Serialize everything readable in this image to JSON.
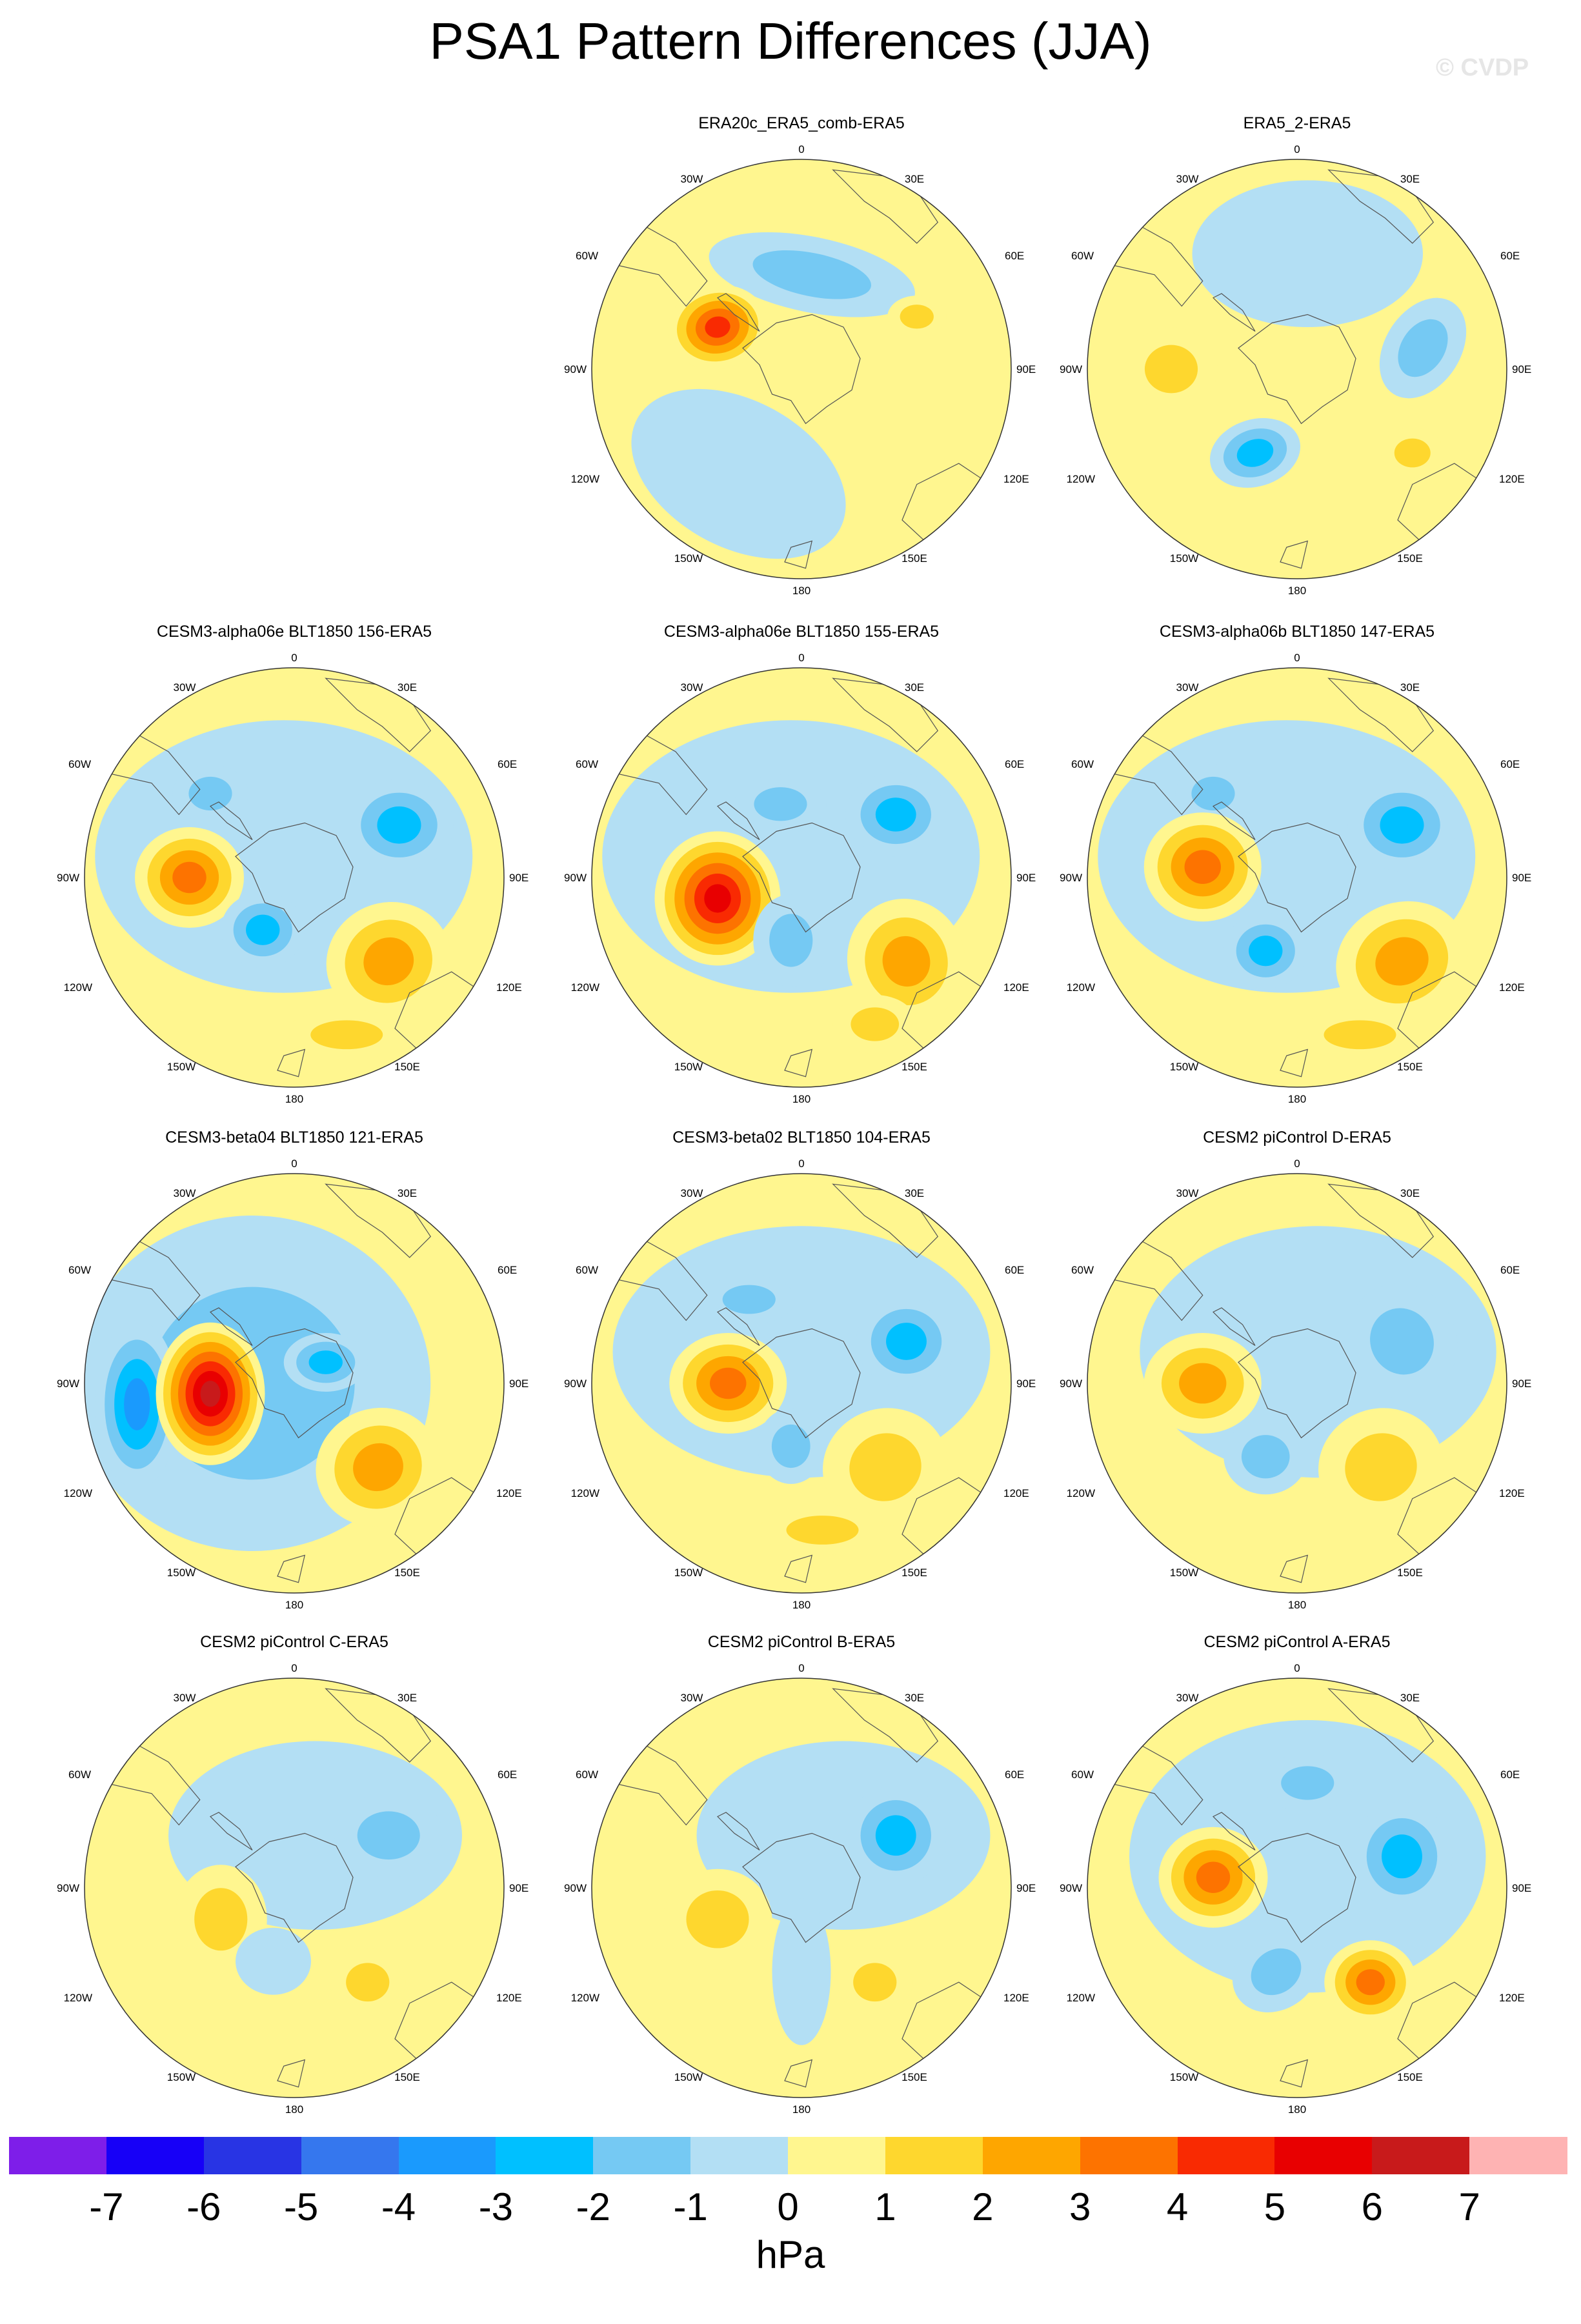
{
  "title": "PSA1 Pattern Differences (JJA)",
  "watermark": "© CVDP",
  "colors": {
    "ocean_default": "#fff68f",
    "levels": [
      "#7e1ee9",
      "#1700f7",
      "#2834e4",
      "#3577ee",
      "#1a9afd",
      "#00c0ff",
      "#75c9f3",
      "#b3dff4",
      "#fff68f",
      "#fed72e",
      "#fea600",
      "#fd7300",
      "#f92a02",
      "#e80001",
      "#c81a1b",
      "#feb3b3"
    ]
  },
  "icons": {
    "map": "polar-stereographic-map"
  },
  "map_labels": {
    "top": "0",
    "bottom": "180",
    "left": "90W",
    "right": "90E",
    "upper_left_1": "30W",
    "upper_left_2": "60W",
    "upper_right_1": "30E",
    "upper_right_2": "60E",
    "lower_left_1": "120W",
    "lower_left_2": "150W",
    "lower_right_1": "120E",
    "lower_right_2": "150E"
  },
  "panels": [
    {
      "title": "ERA20c_ERA5_comb-ERA5",
      "features": [
        [
          -0.3,
          -0.5,
          0.55,
          0.35,
          -0.5,
          -0.6
        ],
        [
          0.05,
          0.45,
          0.5,
          0.18,
          -0.2,
          -2
        ],
        [
          -0.4,
          0.2,
          0.24,
          0.2,
          0.2,
          5
        ],
        [
          0.55,
          0.25,
          0.14,
          0.1,
          0,
          2
        ]
      ]
    },
    {
      "title": "ERA5_2-ERA5",
      "features": [
        [
          0.05,
          0.55,
          0.55,
          0.35,
          0,
          -1
        ],
        [
          0.6,
          0.1,
          0.26,
          0.18,
          1,
          -2
        ],
        [
          -0.6,
          0.0,
          0.22,
          0.2,
          0,
          2
        ],
        [
          -0.2,
          -0.4,
          0.22,
          0.16,
          0.3,
          -3
        ],
        [
          0.55,
          -0.4,
          0.15,
          0.12,
          0,
          2
        ]
      ]
    },
    {
      "title": "CESM3-alpha06e BLT1850 156-ERA5",
      "features": [
        [
          -0.05,
          0.1,
          0.9,
          0.65,
          0,
          -1
        ],
        [
          -0.4,
          0.4,
          0.18,
          0.14,
          0,
          -2
        ],
        [
          0.5,
          0.25,
          0.26,
          0.22,
          0,
          -3
        ],
        [
          -0.5,
          0.0,
          0.26,
          0.24,
          0,
          4
        ],
        [
          -0.15,
          -0.25,
          0.2,
          0.18,
          0,
          -3
        ],
        [
          0.45,
          -0.4,
          0.3,
          0.28,
          0.4,
          3
        ],
        [
          0.25,
          -0.75,
          0.3,
          0.12,
          0,
          2
        ]
      ]
    },
    {
      "title": "CESM3-alpha06e BLT1850 155-ERA5",
      "features": [
        [
          -0.05,
          0.1,
          0.9,
          0.65,
          0,
          -1
        ],
        [
          -0.1,
          0.35,
          0.22,
          0.14,
          0,
          -2
        ],
        [
          0.45,
          0.3,
          0.24,
          0.2,
          0,
          -3
        ],
        [
          -0.4,
          -0.1,
          0.3,
          0.32,
          0,
          6
        ],
        [
          -0.05,
          -0.3,
          0.18,
          0.22,
          0,
          -2
        ],
        [
          0.5,
          -0.4,
          0.28,
          0.3,
          0.3,
          3
        ],
        [
          0.35,
          -0.7,
          0.2,
          0.14,
          0,
          2
        ]
      ]
    },
    {
      "title": "CESM3-alpha06b BLT1850 147-ERA5",
      "features": [
        [
          -0.05,
          0.1,
          0.9,
          0.65,
          0,
          -1
        ],
        [
          -0.4,
          0.4,
          0.18,
          0.14,
          0,
          -2
        ],
        [
          0.5,
          0.25,
          0.26,
          0.22,
          0,
          -3
        ],
        [
          -0.45,
          0.05,
          0.28,
          0.26,
          0,
          4
        ],
        [
          -0.15,
          -0.35,
          0.2,
          0.18,
          0,
          -3
        ],
        [
          0.5,
          -0.4,
          0.32,
          0.28,
          0.4,
          3
        ],
        [
          0.3,
          -0.75,
          0.3,
          0.12,
          0,
          2
        ]
      ]
    },
    {
      "title": "CESM3-beta04 BLT1850 121-ERA5",
      "features": [
        [
          -0.2,
          0.0,
          0.85,
          0.8,
          0,
          -2
        ],
        [
          -0.75,
          -0.1,
          0.2,
          0.4,
          0,
          -4
        ],
        [
          -0.4,
          -0.05,
          0.26,
          0.34,
          0,
          7
        ],
        [
          0.15,
          0.1,
          0.2,
          0.14,
          0,
          -3
        ],
        [
          0.4,
          -0.4,
          0.3,
          0.28,
          0.4,
          3
        ]
      ]
    },
    {
      "title": "CESM3-beta02 BLT1850 104-ERA5",
      "features": [
        [
          0.0,
          0.15,
          0.9,
          0.6,
          0,
          -1
        ],
        [
          -0.25,
          0.4,
          0.22,
          0.12,
          0,
          -2
        ],
        [
          0.5,
          0.2,
          0.24,
          0.22,
          0,
          -3
        ],
        [
          -0.35,
          0.0,
          0.28,
          0.24,
          0,
          4
        ],
        [
          -0.05,
          -0.3,
          0.16,
          0.18,
          0,
          -2
        ],
        [
          0.4,
          -0.4,
          0.3,
          0.28,
          0.3,
          2
        ],
        [
          0.1,
          -0.7,
          0.3,
          0.12,
          0,
          2
        ]
      ]
    },
    {
      "title": "CESM2 piControl D-ERA5",
      "features": [
        [
          0.1,
          0.15,
          0.85,
          0.6,
          0,
          -1
        ],
        [
          0.5,
          0.2,
          0.26,
          0.28,
          0.5,
          -2
        ],
        [
          -0.45,
          0.0,
          0.28,
          0.24,
          0,
          3
        ],
        [
          -0.15,
          -0.35,
          0.2,
          0.18,
          0,
          -2
        ],
        [
          0.4,
          -0.4,
          0.3,
          0.28,
          0.3,
          2
        ]
      ]
    },
    {
      "title": "CESM2 piControl C-ERA5",
      "features": [
        [
          0.1,
          0.25,
          0.7,
          0.45,
          0,
          -1
        ],
        [
          0.45,
          0.25,
          0.26,
          0.2,
          0,
          -2
        ],
        [
          -0.35,
          -0.15,
          0.22,
          0.26,
          0,
          2
        ],
        [
          -0.1,
          -0.35,
          0.18,
          0.16,
          0,
          -1
        ],
        [
          0.35,
          -0.45,
          0.18,
          0.16,
          0,
          2
        ]
      ]
    },
    {
      "title": "CESM2 piControl B-ERA5",
      "features": [
        [
          0.2,
          0.25,
          0.7,
          0.45,
          0,
          -1
        ],
        [
          0.45,
          0.25,
          0.24,
          0.24,
          0,
          -3
        ],
        [
          -0.4,
          -0.15,
          0.26,
          0.24,
          0,
          2
        ],
        [
          0.0,
          -0.4,
          0.14,
          0.35,
          0,
          -1
        ],
        [
          0.35,
          -0.45,
          0.18,
          0.16,
          0,
          2
        ]
      ]
    },
    {
      "title": "CESM2 piControl A-ERA5",
      "features": [
        [
          0.05,
          0.15,
          0.85,
          0.65,
          0,
          -1
        ],
        [
          0.05,
          0.5,
          0.22,
          0.14,
          0,
          -2
        ],
        [
          0.5,
          0.15,
          0.24,
          0.26,
          0,
          -3
        ],
        [
          -0.4,
          0.05,
          0.26,
          0.24,
          0,
          4
        ],
        [
          -0.1,
          -0.4,
          0.22,
          0.18,
          0.6,
          -2
        ],
        [
          0.35,
          -0.45,
          0.22,
          0.2,
          0,
          4
        ]
      ]
    }
  ],
  "colorbar": {
    "ticks": [
      "-7",
      "-6",
      "-5",
      "-4",
      "-3",
      "-2",
      "-1",
      "0",
      "1",
      "2",
      "3",
      "4",
      "5",
      "6",
      "7"
    ],
    "units": "hPa"
  }
}
